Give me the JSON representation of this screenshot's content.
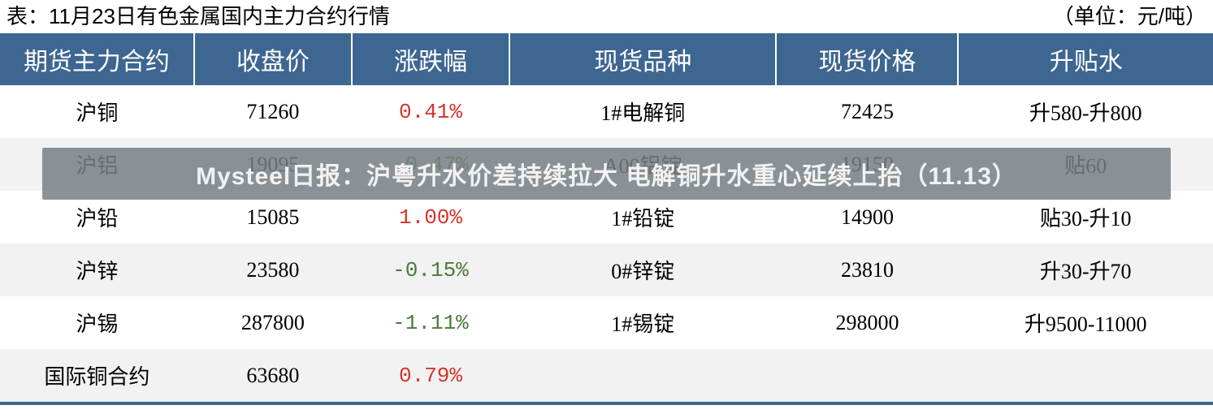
{
  "header": {
    "title_left": "表：11月23日有色金属国内主力合约行情",
    "title_right": "（单位：元/吨）",
    "title_fontsize": 26,
    "title_color": "#000000"
  },
  "overlay": {
    "text": "Mysteel日报：沪粤升水价差持续拉大 电解铜升水重心延续上抬（11.13）",
    "background_color": "rgba(120,128,134,0.85)",
    "text_color": "#f2f2f2",
    "fontsize": 30,
    "font_weight": "bold"
  },
  "table": {
    "type": "table",
    "header_bg": "#3d6690",
    "header_text_color": "#ffffff",
    "header_fontsize": 30,
    "body_fontsize": 26,
    "row_even_bg": "#f2f2f2",
    "row_odd_bg": "#ffffff",
    "pct_up_color": "#d4342a",
    "pct_down_color": "#4a7a3a",
    "border_color": "#3d6690",
    "columns": [
      {
        "label": "期货主力合约",
        "width": "16%",
        "align": "center"
      },
      {
        "label": "收盘价",
        "width": "13%",
        "align": "center"
      },
      {
        "label": "涨跌幅",
        "width": "13%",
        "align": "center"
      },
      {
        "label": "现货品种",
        "width": "22%",
        "align": "center"
      },
      {
        "label": "现货价格",
        "width": "15%",
        "align": "center"
      },
      {
        "label": "升贴水",
        "width": "21%",
        "align": "center"
      }
    ],
    "rows": [
      {
        "contract": "沪铜",
        "close": "71260",
        "pct": "0.41%",
        "dir": "up",
        "spot": "1#电解铜",
        "spot_price": "72425",
        "premium": "升580-升800"
      },
      {
        "contract": "沪铝",
        "close": "19095",
        "pct": "-0.47%",
        "dir": "down",
        "spot": "A00铝锭",
        "spot_price": "19150",
        "premium": "贴60"
      },
      {
        "contract": "沪铅",
        "close": "15085",
        "pct": "1.00%",
        "dir": "up",
        "spot": "1#铅锭",
        "spot_price": "14900",
        "premium": "贴30-升10"
      },
      {
        "contract": "沪锌",
        "close": "23580",
        "pct": "-0.15%",
        "dir": "down",
        "spot": "0#锌锭",
        "spot_price": "23810",
        "premium": "升30-升70"
      },
      {
        "contract": "沪锡",
        "close": "287800",
        "pct": "-1.11%",
        "dir": "down",
        "spot": "1#锡锭",
        "spot_price": "298000",
        "premium": "升9500-11000"
      },
      {
        "contract": "国际铜合约",
        "close": "63680",
        "pct": "0.79%",
        "dir": "up",
        "spot": "",
        "spot_price": "",
        "premium": ""
      }
    ]
  }
}
